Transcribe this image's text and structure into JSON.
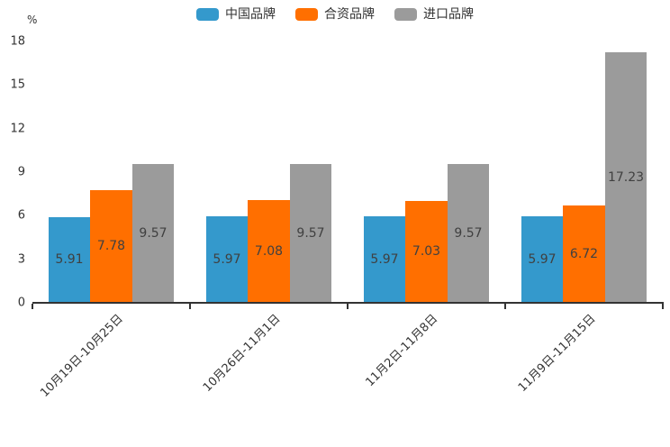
{
  "chart_data": {
    "type": "bar",
    "title": "",
    "ylabel": "%",
    "categories": [
      "10月19日-10月25日",
      "10月26日-11月1日",
      "11月2日-11月8日",
      "11月9日-11月15日"
    ],
    "series": [
      {
        "name": "中国品牌",
        "color": "#3499CC",
        "values": [
          5.91,
          5.97,
          5.97,
          5.97
        ]
      },
      {
        "name": "合资品牌",
        "color": "#FF6F00",
        "values": [
          7.78,
          7.08,
          7.03,
          6.72
        ]
      },
      {
        "name": "进口品牌",
        "color": "#9B9B9B",
        "values": [
          9.57,
          9.57,
          9.57,
          17.23
        ]
      }
    ],
    "ylim": [
      0,
      18
    ],
    "yticks": [
      0,
      3,
      6,
      9,
      12,
      15,
      18
    ],
    "grid": false,
    "legend_position": "top",
    "value_labels": true,
    "value_label_color": "#404040",
    "axis_color": "#333333",
    "background": "#ffffff"
  }
}
